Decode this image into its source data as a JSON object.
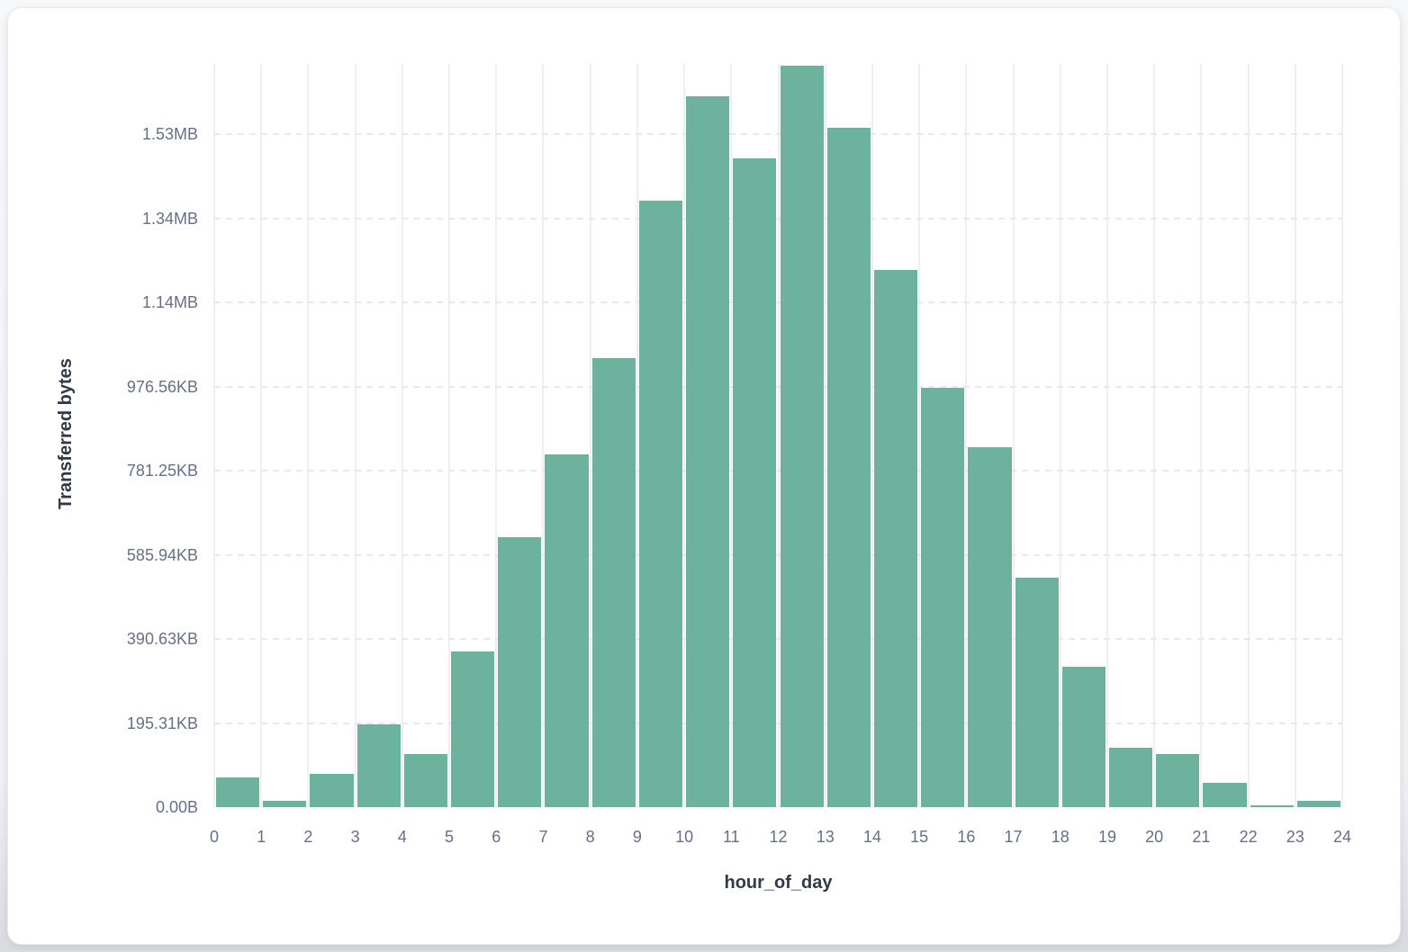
{
  "page": {
    "background_top": "#f7f8fa",
    "background_bottom": "#d9dbdf",
    "card_background": "#ffffff"
  },
  "chart_data": {
    "type": "bar",
    "title": "",
    "xlabel": "hour_of_day",
    "ylabel": "Transferred bytes",
    "bar_color": "#6cb29c",
    "gridline_vertical_color": "#edeff4",
    "gridline_horizontal_color": "#e6e9ef",
    "tick_label_color": "#667085",
    "axis_title_color": "#323a46",
    "legend": "none",
    "grid": {
      "vertical_solid": true,
      "horizontal_dashed": true
    },
    "x_tick_labels": [
      "0",
      "1",
      "2",
      "3",
      "4",
      "5",
      "6",
      "7",
      "8",
      "9",
      "10",
      "11",
      "12",
      "13",
      "14",
      "15",
      "16",
      "17",
      "18",
      "19",
      "20",
      "21",
      "22",
      "23",
      "24"
    ],
    "y_ticks": [
      {
        "label": "0.00B",
        "bytes": 0
      },
      {
        "label": "195.31KB",
        "bytes": 200000
      },
      {
        "label": "390.63KB",
        "bytes": 400000
      },
      {
        "label": "585.94KB",
        "bytes": 600000
      },
      {
        "label": "781.25KB",
        "bytes": 800000
      },
      {
        "label": "976.56KB",
        "bytes": 1000000
      },
      {
        "label": "1.14MB",
        "bytes": 1200000
      },
      {
        "label": "1.34MB",
        "bytes": 1400000
      },
      {
        "label": "1.53MB",
        "bytes": 1600000
      }
    ],
    "ylim_bytes": [
      0,
      1766000
    ],
    "bins_hour_of_day": [
      0,
      1,
      2,
      3,
      4,
      5,
      6,
      7,
      8,
      9,
      10,
      11,
      12,
      13,
      14,
      15,
      16,
      17,
      18,
      19,
      20,
      21,
      22,
      23
    ],
    "series": [
      {
        "name": "Transferred bytes",
        "values_bytes": [
          71000,
          15000,
          79000,
          197000,
          126000,
          370000,
          642000,
          838000,
          1067000,
          1442000,
          1690000,
          1542000,
          1763000,
          1615000,
          1277000,
          997000,
          856000,
          545000,
          334000,
          141000,
          126000,
          58000,
          5000,
          14000
        ]
      }
    ]
  }
}
